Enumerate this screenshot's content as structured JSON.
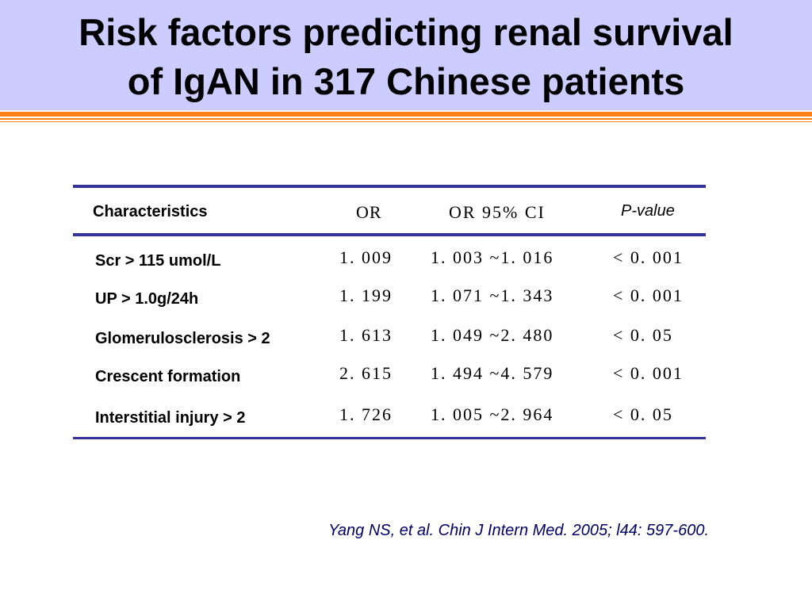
{
  "slide": {
    "title_lines": [
      "Risk factors predicting renal survival",
      "of IgAN in 317  Chinese patients"
    ],
    "colors": {
      "title_band": "#ccccff",
      "stripe": "#ff7f1a",
      "table_rule": "#333399",
      "citation_text": "#000066"
    }
  },
  "table": {
    "headers": {
      "characteristics": "Characteristics",
      "or": "OR",
      "or_ci": "OR 95% CI",
      "p_value": "P-value"
    },
    "rows": [
      {
        "label": "Scr > 115 umol/L",
        "or": "1. 009",
        "ci": "1. 003 ~1. 016",
        "p": "< 0. 001"
      },
      {
        "label": "UP > 1.0g/24h",
        "or": "1. 199",
        "ci": "1. 071 ~1. 343",
        "p": "< 0. 001"
      },
      {
        "label": "Glomerulosclerosis > 2",
        "or": "1. 613",
        "ci": "1. 049 ~2. 480",
        "p": "< 0. 05"
      },
      {
        "label": "Crescent formation",
        "or": "2. 615",
        "ci": "1. 494 ~4. 579",
        "p": "< 0. 001"
      },
      {
        "label": "Interstitial injury  > 2",
        "or": "1. 726",
        "ci": "1. 005 ~2. 964",
        "p": "< 0. 05"
      }
    ]
  },
  "citation": "Yang NS, et al. Chin J Intern Med. 2005; l44: 597-600."
}
